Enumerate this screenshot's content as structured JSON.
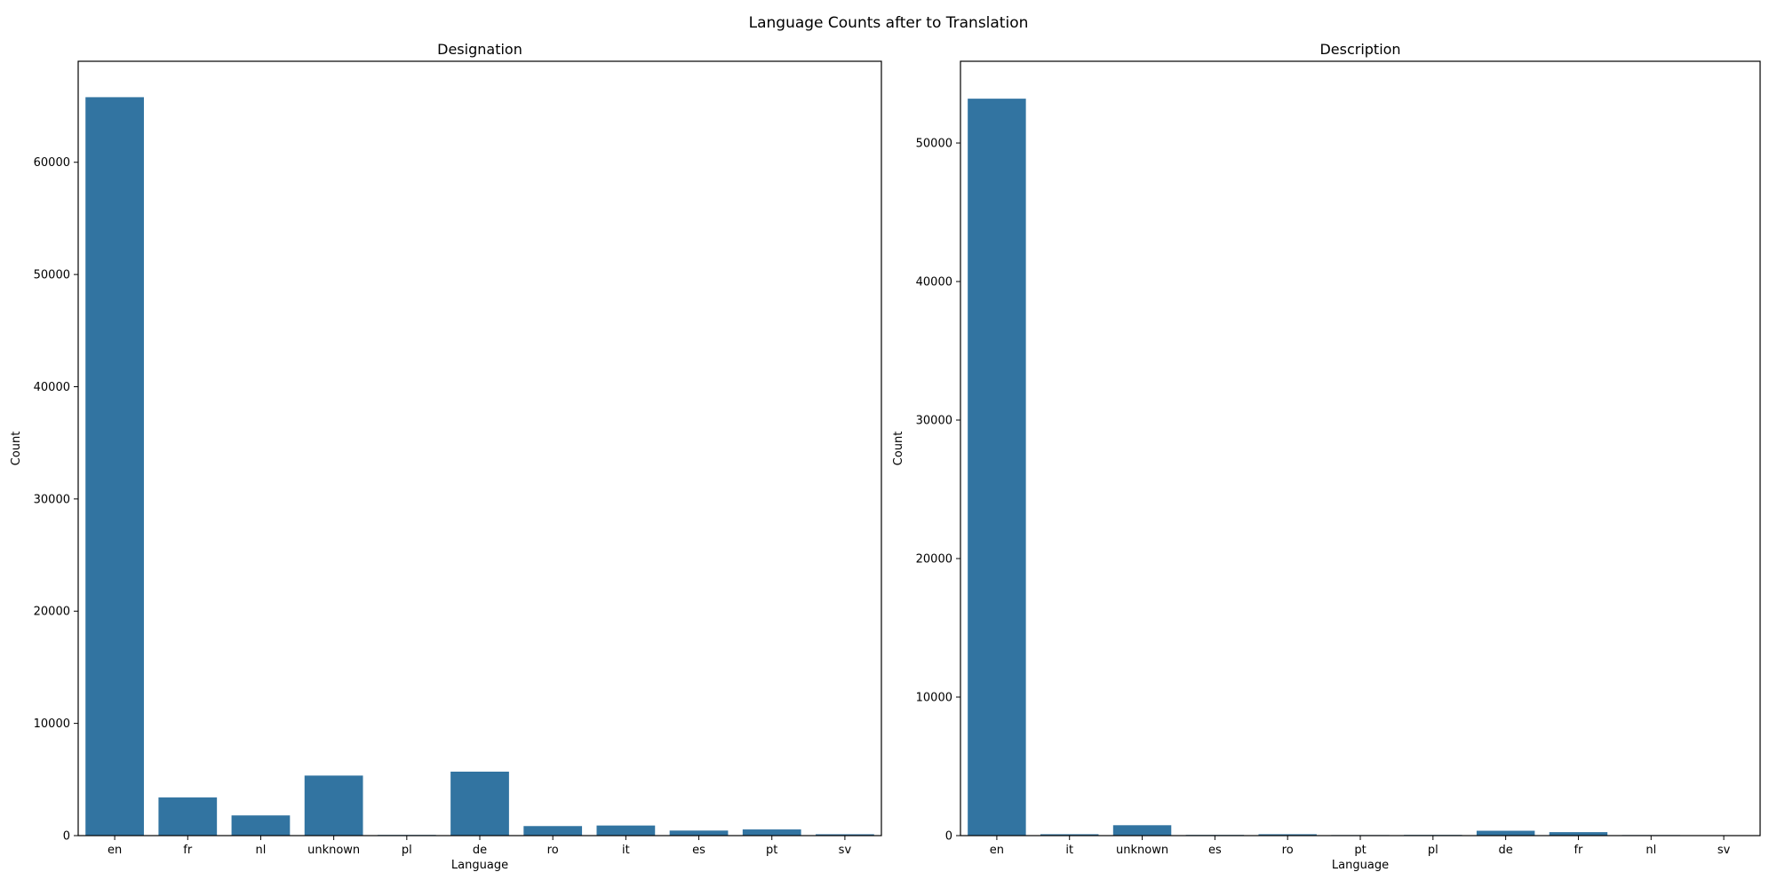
{
  "figure": {
    "title": "Language Counts after to Translation"
  },
  "colors": {
    "bar": "#3274a1",
    "axis": "#000000",
    "background": "#ffffff"
  },
  "chart_data": [
    {
      "type": "bar",
      "title": "Designation",
      "xlabel": "Language",
      "ylabel": "Count",
      "categories": [
        "en",
        "fr",
        "nl",
        "unknown",
        "pl",
        "de",
        "ro",
        "it",
        "es",
        "pt",
        "sv"
      ],
      "values": [
        65800,
        3400,
        1800,
        5350,
        60,
        5700,
        850,
        900,
        450,
        550,
        120
      ],
      "ylim": [
        0,
        69000
      ],
      "yticks": [
        0,
        10000,
        20000,
        30000,
        40000,
        50000,
        60000
      ],
      "grid": false,
      "legend": "none"
    },
    {
      "type": "bar",
      "title": "Description",
      "xlabel": "Language",
      "ylabel": "Count",
      "categories": [
        "en",
        "it",
        "unknown",
        "es",
        "ro",
        "pt",
        "pl",
        "de",
        "fr",
        "nl",
        "sv"
      ],
      "values": [
        53200,
        100,
        750,
        50,
        100,
        40,
        50,
        350,
        250,
        40,
        30
      ],
      "ylim": [
        0,
        55900
      ],
      "yticks": [
        0,
        10000,
        20000,
        30000,
        40000,
        50000
      ],
      "grid": false,
      "legend": "none"
    }
  ]
}
